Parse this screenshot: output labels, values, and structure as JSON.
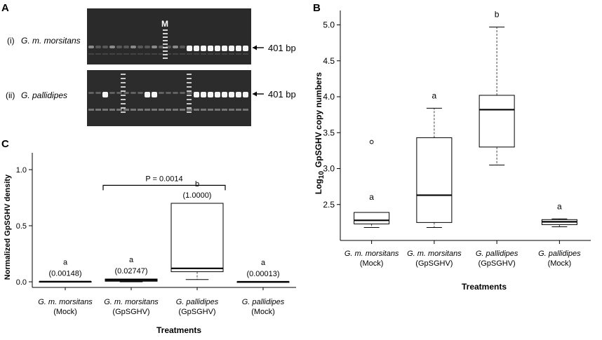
{
  "panels": {
    "A": {
      "letter": "A",
      "marker_label": "M",
      "rows": [
        {
          "index": "(i)",
          "species": "G. m. morsitans",
          "band_label": "401 bp"
        },
        {
          "index": "(ii)",
          "species": "G. pallidipes",
          "band_label": "401 bp"
        }
      ]
    },
    "B": {
      "letter": "B"
    },
    "C": {
      "letter": "C"
    }
  },
  "chart_data": [
    {
      "panel": "B",
      "type": "boxplot",
      "ylabel_prefix": "Log",
      "ylabel_sub": "10",
      "ylabel_rest": "GpSGHV copy numbers",
      "xlabel": "Treatments",
      "ylim": [
        2.0,
        5.2
      ],
      "yticks": [
        "2.5",
        "3.0",
        "3.5",
        "4.0",
        "4.5",
        "5.0"
      ],
      "categories": [
        {
          "species": "G. m. morsitans",
          "group": "(Mock)"
        },
        {
          "species": "G. m. morsitans",
          "group": "(GpSGHV)"
        },
        {
          "species": "G. pallidipes",
          "group": "(GpSGHV)"
        },
        {
          "species": "G. pallidipes",
          "group": "(Mock)"
        }
      ],
      "boxes": [
        {
          "min": 2.18,
          "q1": 2.23,
          "median": 2.28,
          "q3": 2.39,
          "max": 2.39,
          "outliers": [
            3.37
          ],
          "letter": "a"
        },
        {
          "min": 2.18,
          "q1": 2.25,
          "median": 2.63,
          "q3": 3.43,
          "max": 3.84,
          "outliers": [],
          "letter": "a"
        },
        {
          "min": 3.05,
          "q1": 3.3,
          "median": 3.82,
          "q3": 4.02,
          "max": 4.97,
          "outliers": [],
          "letter": "b"
        },
        {
          "min": 2.19,
          "q1": 2.22,
          "median": 2.26,
          "q3": 2.29,
          "max": 2.3,
          "outliers": [],
          "letter": "a"
        }
      ]
    },
    {
      "panel": "C",
      "type": "boxplot",
      "ylabel": "Normalized GpSGHV density",
      "xlabel": "Treatments",
      "ylim": [
        -0.05,
        1.15
      ],
      "yticks": [
        "0.0",
        "0.5",
        "1.0"
      ],
      "p_value": "P = 0.0014",
      "categories": [
        {
          "species": "G. m. morsitans",
          "group": "(Mock)"
        },
        {
          "species": "G. m. morsitans",
          "group": "(GpSGHV)"
        },
        {
          "species": "G. pallidipes",
          "group": "(GpSGHV)"
        },
        {
          "species": "G. pallidipes",
          "group": "(Mock)"
        }
      ],
      "boxes": [
        {
          "min": 0.0,
          "q1": 0.0,
          "median": 0.0015,
          "q3": 0.003,
          "max": 0.003,
          "letter": "a",
          "value": "(0.00148)"
        },
        {
          "min": 0.0,
          "q1": 0.005,
          "median": 0.015,
          "q3": 0.025,
          "max": 0.025,
          "letter": "a",
          "value": "(0.02747)"
        },
        {
          "min": 0.02,
          "q1": 0.09,
          "median": 0.12,
          "q3": 0.7,
          "max": 0.7,
          "letter": "b",
          "value": "(1.0000)"
        },
        {
          "min": 0.0,
          "q1": 0.0,
          "median": 0.0,
          "q3": 0.001,
          "max": 0.001,
          "letter": "a",
          "value": "(0.00013)"
        }
      ]
    }
  ]
}
